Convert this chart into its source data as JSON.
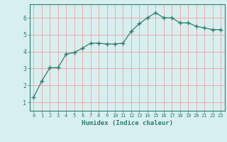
{
  "x": [
    0,
    1,
    2,
    3,
    4,
    5,
    6,
    7,
    8,
    9,
    10,
    11,
    12,
    13,
    14,
    15,
    16,
    17,
    18,
    19,
    20,
    21,
    22,
    23
  ],
  "y": [
    1.3,
    2.25,
    3.05,
    3.05,
    3.85,
    3.95,
    4.2,
    4.5,
    4.5,
    4.45,
    4.45,
    4.5,
    5.2,
    5.65,
    6.0,
    6.3,
    6.0,
    6.0,
    5.7,
    5.7,
    5.5,
    5.4,
    5.3,
    5.3
  ],
  "xlabel": "Humidex (Indice chaleur)",
  "ylim": [
    0.5,
    6.8
  ],
  "xlim": [
    -0.5,
    23.5
  ],
  "yticks": [
    1,
    2,
    3,
    4,
    5,
    6
  ],
  "xticks": [
    0,
    1,
    2,
    3,
    4,
    5,
    6,
    7,
    8,
    9,
    10,
    11,
    12,
    13,
    14,
    15,
    16,
    17,
    18,
    19,
    20,
    21,
    22,
    23
  ],
  "line_color": "#2e7d6e",
  "marker": "+",
  "bg_color": "#d8eff0",
  "grid_color": "#f0a0a0",
  "axis_color": "#2e7d6e",
  "label_color": "#2e7d6e",
  "tick_color": "#2e7d6e"
}
